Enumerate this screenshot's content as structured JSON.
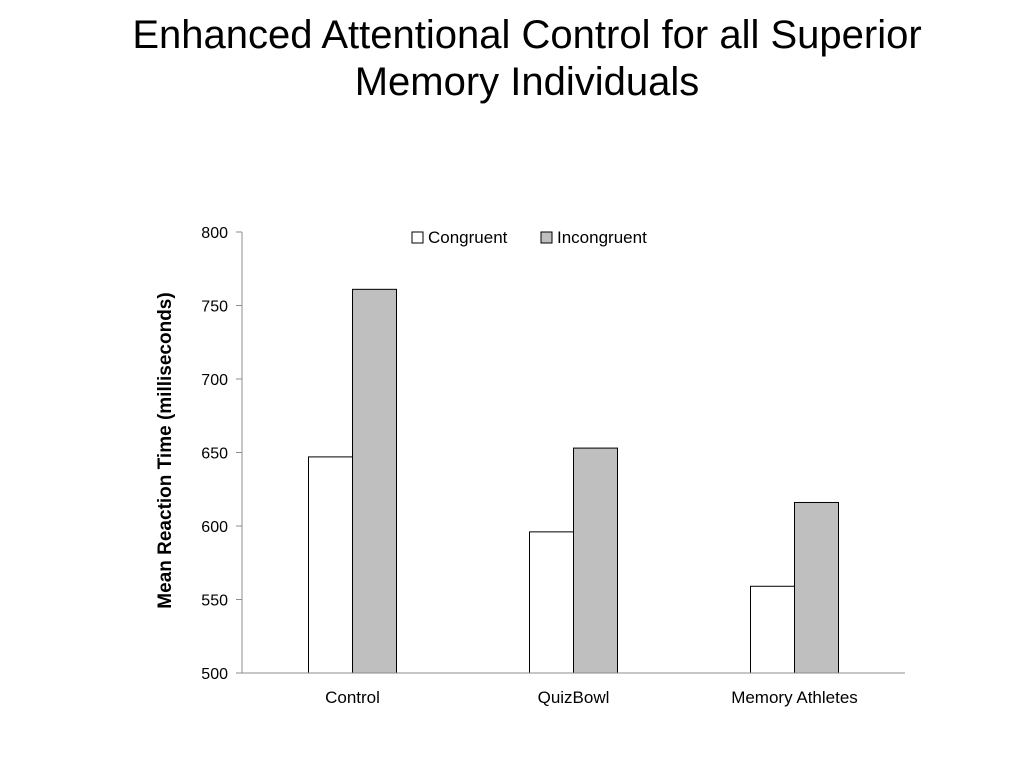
{
  "slide": {
    "title_line1": "Enhanced Attentional Control for all Superior",
    "title_line2": "Memory Individuals"
  },
  "chart_data": {
    "type": "bar",
    "title": "",
    "xlabel": "",
    "ylabel": "Mean Reaction Time (milliseconds)",
    "categories": [
      "Control",
      "QuizBowl",
      "Memory Athletes"
    ],
    "series": [
      {
        "name": "Congruent",
        "values": [
          647,
          596,
          559
        ],
        "color": "#ffffff"
      },
      {
        "name": "Incongruent",
        "values": [
          761,
          653,
          616
        ],
        "color": "#bfbfbf"
      }
    ],
    "ylim": [
      500,
      800
    ],
    "yticks": [
      500,
      550,
      600,
      650,
      700,
      750,
      800
    ],
    "grid": false,
    "legend": "top-center"
  }
}
